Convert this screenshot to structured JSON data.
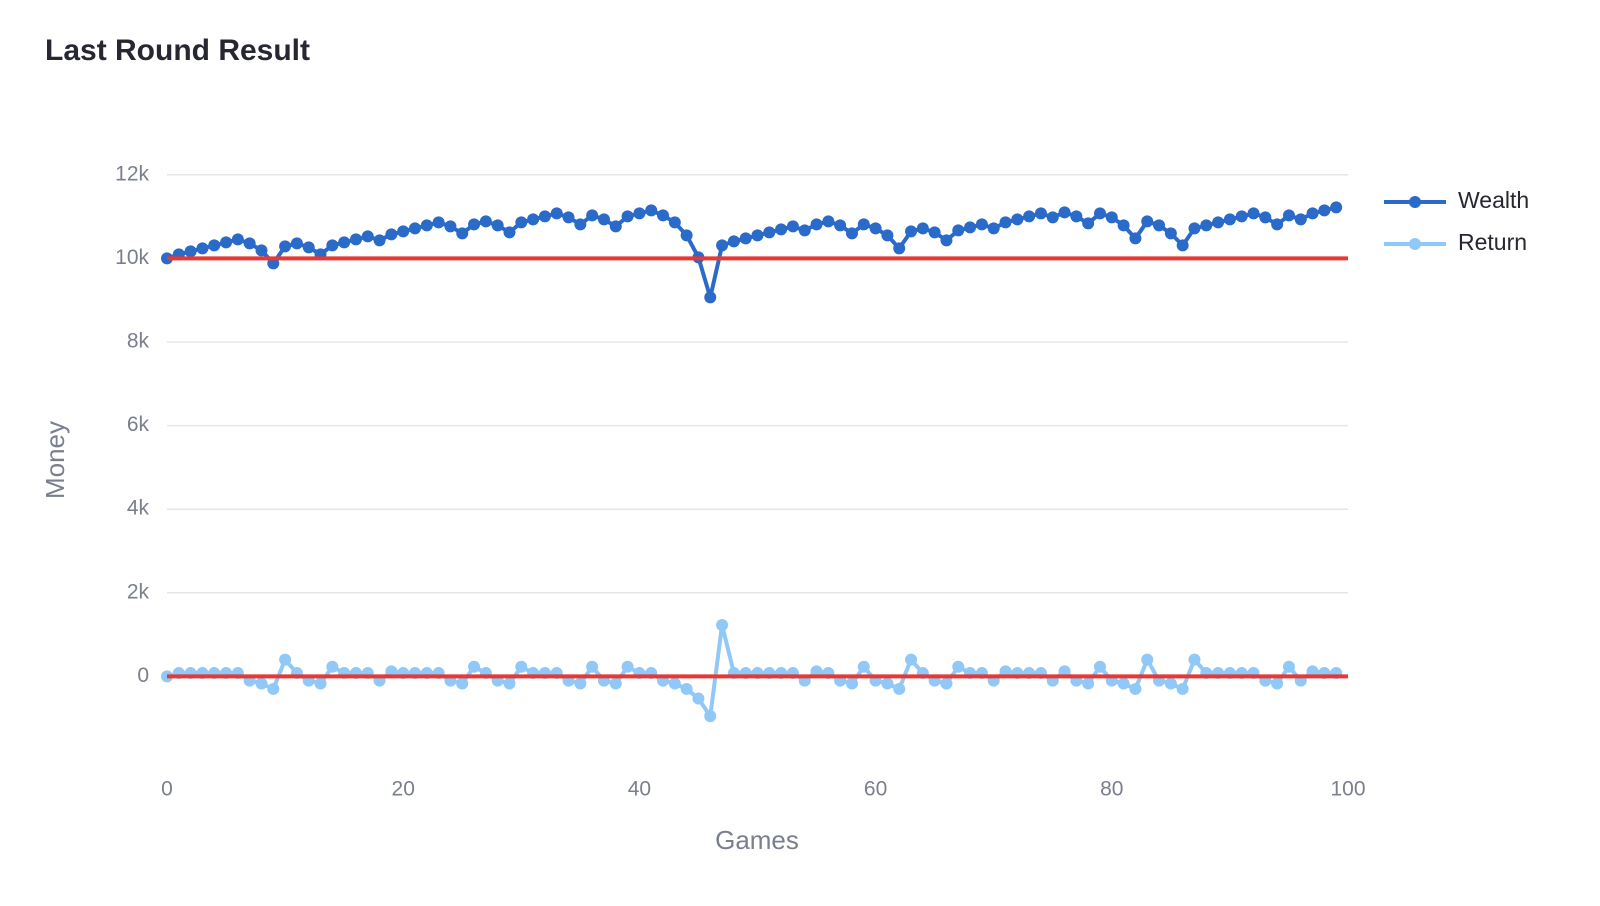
{
  "chart_data": {
    "type": "line",
    "title": "Last Round Result",
    "xlabel": "Games",
    "ylabel": "Money",
    "x": [
      0,
      1,
      2,
      3,
      4,
      5,
      6,
      7,
      8,
      9,
      10,
      11,
      12,
      13,
      14,
      15,
      16,
      17,
      18,
      19,
      20,
      21,
      22,
      23,
      24,
      25,
      26,
      27,
      28,
      29,
      30,
      31,
      32,
      33,
      34,
      35,
      36,
      37,
      38,
      39,
      40,
      41,
      42,
      43,
      44,
      45,
      46,
      47,
      48,
      49,
      50,
      51,
      52,
      53,
      54,
      55,
      56,
      57,
      58,
      59,
      60,
      61,
      62,
      63,
      64,
      65,
      66,
      67,
      68,
      69,
      70,
      71,
      72,
      73,
      74,
      75,
      76,
      77,
      78,
      79,
      80,
      81,
      82,
      83,
      84,
      85,
      86,
      87,
      88,
      89,
      90,
      91,
      92,
      93,
      94,
      95,
      96,
      97,
      98,
      99
    ],
    "series": [
      {
        "name": "Wealth",
        "color": "#2a6ac8",
        "values": [
          10000,
          10096,
          10167,
          10239,
          10311,
          10383,
          10455,
          10359,
          10191,
          9880,
          10287,
          10359,
          10263,
          10096,
          10311,
          10383,
          10455,
          10526,
          10431,
          10574,
          10646,
          10718,
          10789,
          10861,
          10765,
          10598,
          10813,
          10885,
          10789,
          10622,
          10861,
          10933,
          11005,
          11077,
          10981,
          10813,
          11029,
          10933,
          10765,
          11005,
          11077,
          11148,
          11029,
          10861,
          10550,
          10024,
          9067,
          10311,
          10407,
          10478,
          10550,
          10622,
          10694,
          10765,
          10670,
          10813,
          10885,
          10789,
          10598,
          10813,
          10718,
          10550,
          10239,
          10646,
          10718,
          10622,
          10431,
          10670,
          10742,
          10813,
          10718,
          10861,
          10933,
          11005,
          11077,
          10981,
          11100,
          11005,
          10837,
          11077,
          10981,
          10789,
          10478,
          10885,
          10789,
          10598,
          10311,
          10718,
          10789,
          10861,
          10933,
          11005,
          11077,
          10981,
          10813,
          11029,
          10933,
          11077,
          11148,
          11220
        ]
      },
      {
        "name": "Return",
        "color": "#90c8f8",
        "values": [
          0,
          80,
          80,
          80,
          80,
          80,
          80,
          -100,
          -170,
          -300,
          400,
          80,
          -100,
          -170,
          230,
          80,
          80,
          80,
          -100,
          120,
          80,
          80,
          80,
          80,
          -100,
          -170,
          230,
          80,
          -100,
          -170,
          230,
          80,
          80,
          80,
          -100,
          -170,
          230,
          -100,
          -170,
          230,
          80,
          80,
          -100,
          -170,
          -300,
          -530,
          -950,
          1230,
          80,
          80,
          80,
          80,
          80,
          80,
          -100,
          120,
          80,
          -100,
          -170,
          230,
          -100,
          -170,
          -300,
          400,
          80,
          -100,
          -170,
          230,
          80,
          80,
          -100,
          120,
          80,
          80,
          80,
          -100,
          120,
          -100,
          -170,
          230,
          -100,
          -170,
          -300,
          400,
          -100,
          -170,
          -300,
          400,
          80,
          80,
          80,
          80,
          80,
          -100,
          -170,
          230,
          -100,
          120,
          80,
          80
        ]
      }
    ],
    "reference_lines": [
      10000,
      0
    ],
    "reference_color": "#e53935",
    "xlim": [
      0,
      100
    ],
    "xticks": [
      0,
      20,
      40,
      60,
      80,
      100
    ],
    "ylim": [
      -2000,
      13000
    ],
    "yticks": [
      0,
      {
        "value": 2000,
        "label": "2k"
      },
      {
        "value": 4000,
        "label": "4k"
      },
      {
        "value": 6000,
        "label": "6k"
      },
      {
        "value": 8000,
        "label": "8k"
      },
      {
        "value": 10000,
        "label": "10k"
      },
      {
        "value": 12000,
        "label": "12k"
      }
    ],
    "grid": true,
    "legend": "right"
  }
}
